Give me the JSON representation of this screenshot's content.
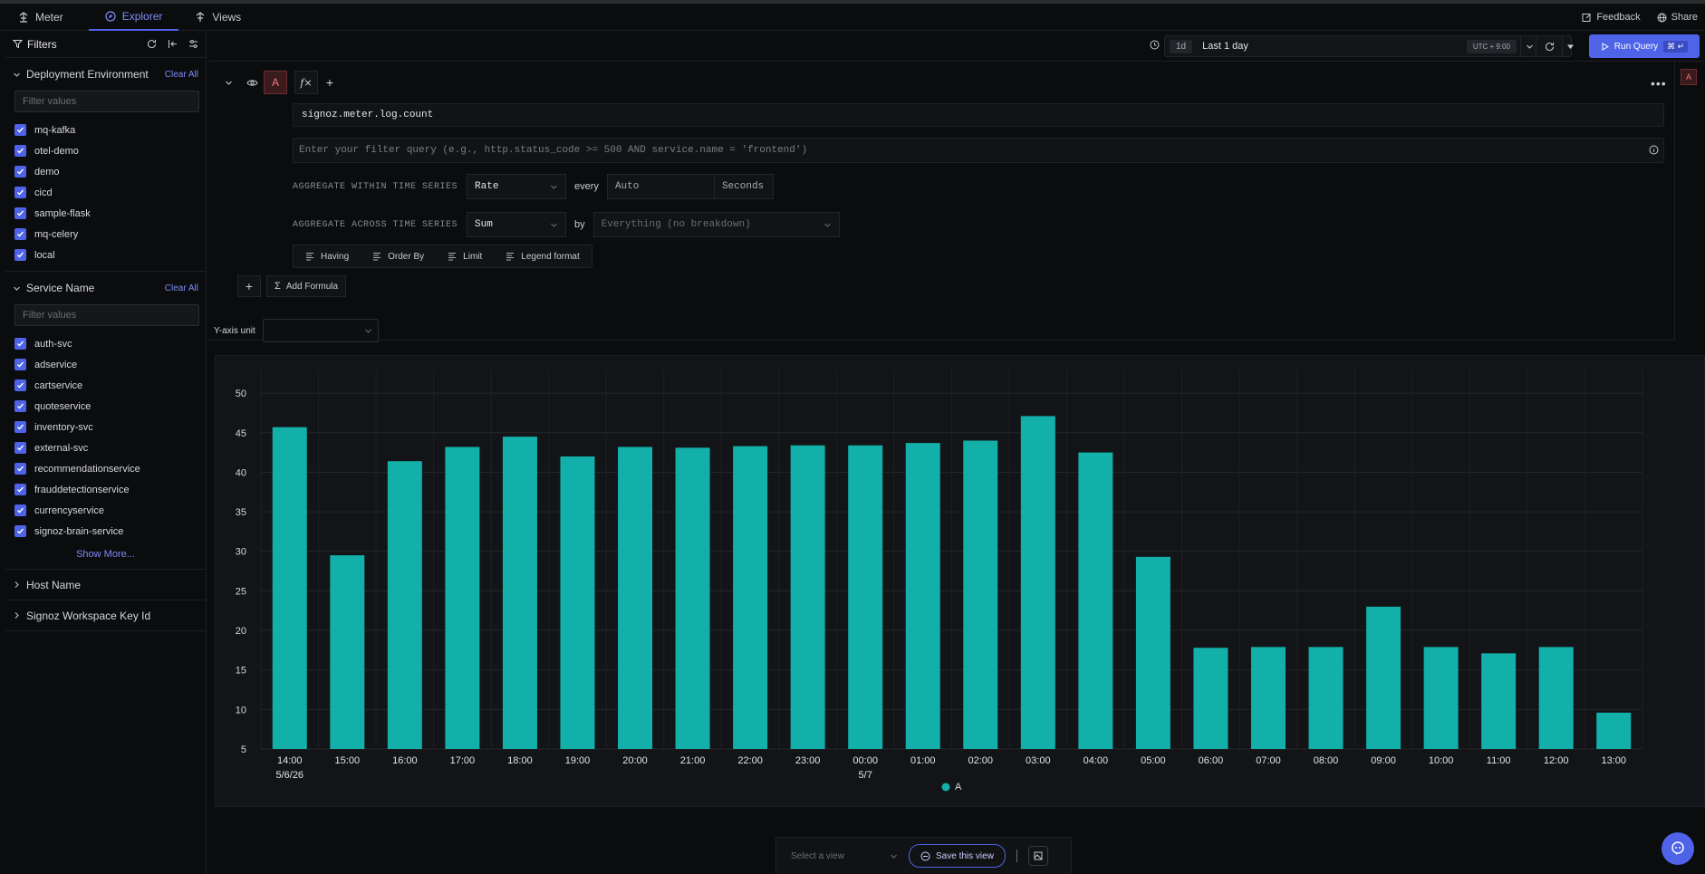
{
  "nav": {
    "tabs": [
      {
        "label": "Meter",
        "icon": "meter-icon"
      },
      {
        "label": "Explorer",
        "icon": "compass-icon"
      },
      {
        "label": "Views",
        "icon": "views-icon"
      }
    ],
    "feedback": "Feedback",
    "share": "Share"
  },
  "sidebar": {
    "title": "Filters",
    "sections": [
      {
        "name": "Deployment Environment",
        "clear": "Clear All",
        "placeholder": "Filter values",
        "items": [
          "mq-kafka",
          "otel-demo",
          "demo",
          "cicd",
          "sample-flask",
          "mq-celery",
          "local"
        ]
      },
      {
        "name": "Service Name",
        "clear": "Clear All",
        "placeholder": "Filter values",
        "items": [
          "auth-svc",
          "adservice",
          "cartservice",
          "quoteservice",
          "inventory-svc",
          "external-svc",
          "recommendationservice",
          "frauddetectionservice",
          "currencyservice",
          "signoz-brain-service"
        ],
        "show_more": "Show More..."
      }
    ],
    "collapsed": [
      "Host Name",
      "Signoz Workspace Key Id"
    ]
  },
  "toolbar": {
    "time_badge": "1d",
    "time_label": "Last 1 day",
    "timezone": "UTC + 9:00",
    "run_label": "Run Query",
    "run_kbd": "⌘ ↵"
  },
  "query": {
    "name": "A",
    "metric": "signoz.meter.log.count",
    "filter_placeholder": "Enter your filter query (e.g., http.status_code >= 500 AND service.name = 'frontend')",
    "within_label": "AGGREGATE WITHIN TIME SERIES",
    "within_value": "Rate",
    "every_label": "every",
    "every_value": "Auto",
    "every_unit": "Seconds",
    "across_label": "AGGREGATE ACROSS TIME SERIES",
    "across_value": "Sum",
    "by_label": "by",
    "by_placeholder": "Everything (no breakdown)",
    "options": [
      "Having",
      "Order By",
      "Limit",
      "Legend format"
    ],
    "add_formula": "Add Formula"
  },
  "yaxis": {
    "label": "Y-axis unit"
  },
  "chart_data": {
    "type": "bar",
    "categories": [
      "14:00",
      "15:00",
      "16:00",
      "17:00",
      "18:00",
      "19:00",
      "20:00",
      "21:00",
      "22:00",
      "23:00",
      "00:00",
      "01:00",
      "02:00",
      "03:00",
      "04:00",
      "05:00",
      "06:00",
      "07:00",
      "08:00",
      "09:00",
      "10:00",
      "11:00",
      "12:00",
      "13:00"
    ],
    "date_labels": {
      "0": "5/6/26",
      "10": "5/7"
    },
    "series": [
      {
        "name": "A",
        "color": "#12b0a8",
        "values": [
          45.7,
          29.5,
          41.4,
          43.2,
          44.5,
          42.0,
          43.2,
          43.1,
          43.3,
          43.4,
          43.4,
          43.7,
          44.0,
          47.1,
          42.5,
          29.3,
          17.8,
          17.9,
          17.9,
          23.0,
          17.9,
          17.1,
          17.9,
          9.6
        ]
      }
    ],
    "yticks": [
      5,
      10,
      15,
      20,
      25,
      30,
      35,
      40,
      45,
      50
    ],
    "ylim": [
      5,
      51.5
    ],
    "grid": true,
    "legend": "bottom-center"
  },
  "footer": {
    "view_placeholder": "Select a view",
    "save_label": "Save this view"
  }
}
